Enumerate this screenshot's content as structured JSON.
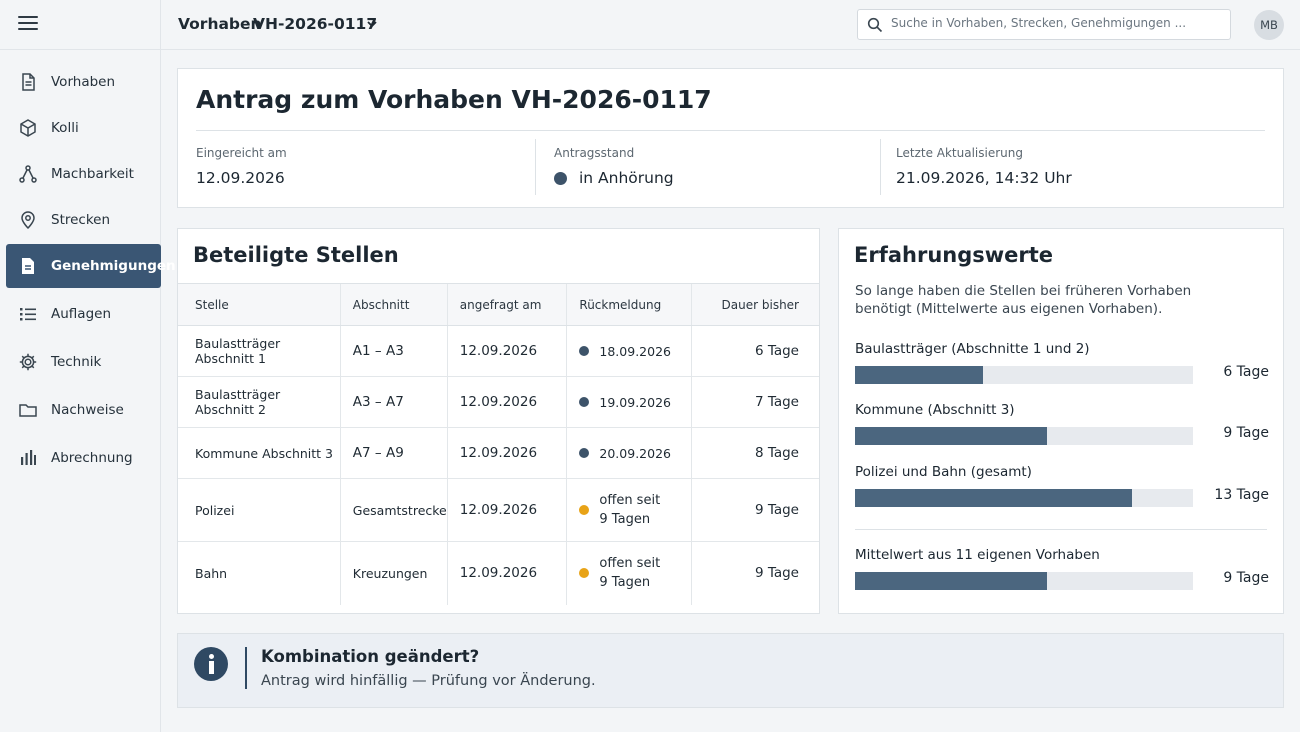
{
  "header": {
    "section": "Vorhaben",
    "project_id": "VH-2026-0117",
    "search_placeholder": "Suche in Vorhaben, Strecken, Genehmigungen ...",
    "avatar_initials": "MB"
  },
  "sidebar": {
    "items": [
      {
        "label": "Vorhaben",
        "icon": "document-icon"
      },
      {
        "label": "Kolli",
        "icon": "package-icon"
      },
      {
        "label": "Machbarkeit",
        "icon": "route-nodes-icon"
      },
      {
        "label": "Strecken",
        "icon": "map-pin-icon"
      },
      {
        "label": "Genehmigungen",
        "icon": "permit-document-icon",
        "active": true
      },
      {
        "label": "Auflagen",
        "icon": "list-icon"
      },
      {
        "label": "Technik",
        "icon": "gear-icon"
      },
      {
        "label": "Nachweise",
        "icon": "folder-icon"
      },
      {
        "label": "Abrechnung",
        "icon": "bar-chart-icon"
      }
    ]
  },
  "application": {
    "title": "Antrag zum Vorhaben VH-2026-0117",
    "submitted_label": "Eingereicht am",
    "submitted_value": "12.09.2026",
    "status_label": "Antragsstand",
    "status_value": "in Anhörung",
    "updated_label": "Letzte Aktualisierung",
    "updated_value": "21.09.2026, 14:32 Uhr"
  },
  "parties": {
    "title": "Beteiligte Stellen",
    "columns": [
      "Stelle",
      "Abschnitt",
      "angefragt am",
      "Rückmeldung",
      "Dauer bisher"
    ],
    "rows": [
      {
        "stelle": "Baulastträger Abschnitt 1",
        "abschnitt": "A1 – A3",
        "angefragt": "12.09.2026",
        "rueckmeldung": "18.09.2026",
        "rueckmeldung2": "",
        "status": "done",
        "dauer": "6 Tage"
      },
      {
        "stelle": "Baulastträger Abschnitt 2",
        "abschnitt": "A3 – A7",
        "angefragt": "12.09.2026",
        "rueckmeldung": "19.09.2026",
        "rueckmeldung2": "",
        "status": "done",
        "dauer": "7 Tage"
      },
      {
        "stelle": "Kommune Abschnitt 3",
        "abschnitt": "A7 – A9",
        "angefragt": "12.09.2026",
        "rueckmeldung": "20.09.2026",
        "rueckmeldung2": "",
        "status": "done",
        "dauer": "8 Tage"
      },
      {
        "stelle": "Polizei",
        "abschnitt": "Gesamtstrecke",
        "angefragt": "12.09.2026",
        "rueckmeldung": "offen seit",
        "rueckmeldung2": "9 Tagen",
        "status": "open",
        "dauer": "9 Tage"
      },
      {
        "stelle": "Bahn",
        "abschnitt": "Kreuzungen",
        "angefragt": "12.09.2026",
        "rueckmeldung": "offen seit",
        "rueckmeldung2": "9 Tagen",
        "status": "open",
        "dauer": "9 Tage"
      }
    ]
  },
  "experience": {
    "title": "Erfahrungswerte",
    "intro": "So lange haben die Stellen bei früheren Vorhaben benötigt (Mittelwerte aus eigenen Vorhaben).",
    "bars": [
      {
        "label": "Baulastträger (Abschnitte 1 und 2)",
        "days": 6,
        "days_text": "6 Tage"
      },
      {
        "label": "Kommune (Abschnitt 3)",
        "days": 9,
        "days_text": "9 Tage"
      },
      {
        "label": "Polizei und Bahn (gesamt)",
        "days": 13,
        "days_text": "13 Tage"
      }
    ],
    "average": {
      "label": "Mittelwert aus 11 eigenen Vorhaben",
      "days": 9,
      "days_text": "9 Tage"
    }
  },
  "notice": {
    "title": "Kombination geändert?",
    "text": "Antrag wird hinfällig — Prüfung vor Änderung."
  },
  "colors": {
    "accent": "#3a5674",
    "status_done": "#3d5369",
    "status_open": "#e8a317",
    "bar": "#4b667f"
  }
}
